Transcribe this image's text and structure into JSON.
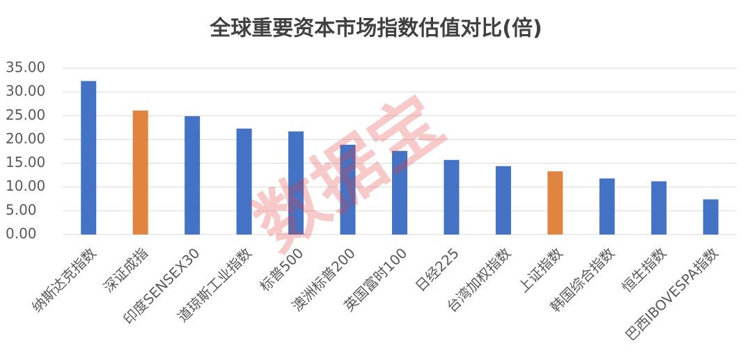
{
  "chart_data": {
    "type": "bar",
    "title": "全球重要资本市场指数估值对比(倍)",
    "categories": [
      "纳斯达克指数",
      "深证成指",
      "印度SENSEX30",
      "道琼斯工业指数",
      "标普500",
      "澳洲标普200",
      "英国富时100",
      "日经225",
      "台湾加权指数",
      "上证指数",
      "韩国综合指数",
      "恒生指数",
      "巴西IBOVESPA指数"
    ],
    "values": [
      32.3,
      26.1,
      24.9,
      22.3,
      21.7,
      18.9,
      17.6,
      15.7,
      14.4,
      13.3,
      11.8,
      11.2,
      7.4
    ],
    "colors": [
      "#4472c4",
      "#e0843f",
      "#4472c4",
      "#4472c4",
      "#4472c4",
      "#4472c4",
      "#4472c4",
      "#4472c4",
      "#4472c4",
      "#e0843f",
      "#4472c4",
      "#4472c4",
      "#4472c4"
    ],
    "ylim": [
      0,
      35
    ],
    "yticks": [
      {
        "value": 0,
        "label": "0.00"
      },
      {
        "value": 5,
        "label": "5.00"
      },
      {
        "value": 10,
        "label": "10.00"
      },
      {
        "value": 15,
        "label": "15.00"
      },
      {
        "value": 20,
        "label": "20.00"
      },
      {
        "value": 25,
        "label": "25.00"
      },
      {
        "value": 30,
        "label": "30.00"
      },
      {
        "value": 35,
        "label": "35.00"
      }
    ],
    "grid": true,
    "watermark": "数据宝"
  }
}
